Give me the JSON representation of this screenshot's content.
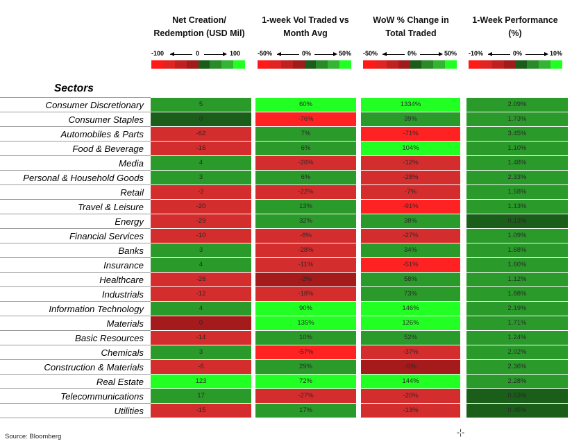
{
  "headers": [
    {
      "line1": "Net Creation/",
      "line2": "Redemption (USD Mil)"
    },
    {
      "line1": "1-week Vol Traded vs",
      "line2": "Month Avg"
    },
    {
      "line1": "WoW % Change in",
      "line2": "Total Traded"
    },
    {
      "line1": "1-Week Performance",
      "line2": "(%)"
    }
  ],
  "scales": [
    {
      "min": "-100",
      "mid": "0",
      "max": "100"
    },
    {
      "min": "-50%",
      "mid": "0%",
      "max": "50%"
    },
    {
      "min": "-50%",
      "mid": "0%",
      "max": "50%"
    },
    {
      "min": "-10%",
      "mid": "0%",
      "max": "10%"
    }
  ],
  "colors": {
    "bright_red": "#ff2222",
    "red": "#d42d2d",
    "dark_red": "#a51a1a",
    "dark_green": "#1a5e1a",
    "green": "#2a9a2a",
    "bright_green": "#22ff22",
    "scale_steps": [
      "#ff1a1a",
      "#e02424",
      "#c02020",
      "#a01c1c",
      "#1b5c1b",
      "#2a8a2a",
      "#33b433",
      "#22ff22"
    ]
  },
  "sectors_title": "Sectors",
  "source": "Source: Bloomberg",
  "cursor_glyph": "-¦-",
  "chart_data": {
    "type": "table",
    "columns": [
      "Net Creation/ Redemption (USD Mil)",
      "1-week Vol Traded vs Month Avg",
      "WoW % Change in Total Traded",
      "1-Week Performance (%)"
    ],
    "rows": [
      {
        "sector": "Consumer Discretionary",
        "net": 5,
        "vol": "60%",
        "wow": "1334%",
        "perf": "2.09%",
        "colors": [
          "green",
          "bright_green",
          "bright_green",
          "green"
        ]
      },
      {
        "sector": "Consumer Staples",
        "net": 0,
        "vol": "-76%",
        "wow": "39%",
        "perf": "1.73%",
        "colors": [
          "dark_green",
          "bright_red",
          "green",
          "green"
        ]
      },
      {
        "sector": "Automobiles & Parts",
        "net": -62,
        "vol": "7%",
        "wow": "-71%",
        "perf": "3.45%",
        "colors": [
          "red",
          "green",
          "bright_red",
          "green"
        ]
      },
      {
        "sector": "Food & Beverage",
        "net": -16,
        "vol": "6%",
        "wow": "104%",
        "perf": "1.10%",
        "colors": [
          "red",
          "green",
          "bright_green",
          "green"
        ]
      },
      {
        "sector": "Media",
        "net": 4,
        "vol": "-26%",
        "wow": "-12%",
        "perf": "1.48%",
        "colors": [
          "green",
          "red",
          "red",
          "green"
        ]
      },
      {
        "sector": "Personal & Household Goods",
        "net": 3,
        "vol": "6%",
        "wow": "-28%",
        "perf": "2.33%",
        "colors": [
          "green",
          "green",
          "red",
          "green"
        ]
      },
      {
        "sector": "Retail",
        "net": -2,
        "vol": "-22%",
        "wow": "-7%",
        "perf": "1.58%",
        "colors": [
          "red",
          "red",
          "red",
          "green"
        ]
      },
      {
        "sector": "Travel & Leisure",
        "net": -20,
        "vol": "13%",
        "wow": "-91%",
        "perf": "1.13%",
        "colors": [
          "red",
          "green",
          "bright_red",
          "green"
        ]
      },
      {
        "sector": "Energy",
        "net": -29,
        "vol": "32%",
        "wow": "38%",
        "perf": "0.13%",
        "colors": [
          "red",
          "green",
          "green",
          "dark_green"
        ]
      },
      {
        "sector": "Financial Services",
        "net": -10,
        "vol": "-8%",
        "wow": "-27%",
        "perf": "1.09%",
        "colors": [
          "red",
          "red",
          "red",
          "green"
        ]
      },
      {
        "sector": "Banks",
        "net": 3,
        "vol": "-28%",
        "wow": "34%",
        "perf": "1.68%",
        "colors": [
          "green",
          "red",
          "green",
          "green"
        ]
      },
      {
        "sector": "Insurance",
        "net": 4,
        "vol": "-11%",
        "wow": "-51%",
        "perf": "1.60%",
        "colors": [
          "green",
          "red",
          "bright_red",
          "green"
        ]
      },
      {
        "sector": "Healthcare",
        "net": -26,
        "vol": "-2%",
        "wow": "58%",
        "perf": "1.12%",
        "colors": [
          "red",
          "dark_red",
          "green",
          "green"
        ]
      },
      {
        "sector": "Industrials",
        "net": -12,
        "vol": "-18%",
        "wow": "73%",
        "perf": "1.88%",
        "colors": [
          "red",
          "red",
          "green",
          "green"
        ]
      },
      {
        "sector": "Information Technology",
        "net": 4,
        "vol": "90%",
        "wow": "146%",
        "perf": "2.19%",
        "colors": [
          "green",
          "bright_green",
          "bright_green",
          "green"
        ]
      },
      {
        "sector": "Materials",
        "net": 0,
        "vol": "135%",
        "wow": "126%",
        "perf": "1.71%",
        "colors": [
          "dark_red",
          "bright_green",
          "bright_green",
          "green"
        ]
      },
      {
        "sector": "Basic Resources",
        "net": -14,
        "vol": "10%",
        "wow": "52%",
        "perf": "1.24%",
        "colors": [
          "red",
          "green",
          "green",
          "green"
        ]
      },
      {
        "sector": "Chemicals",
        "net": 3,
        "vol": "-57%",
        "wow": "-37%",
        "perf": "2.02%",
        "colors": [
          "green",
          "bright_red",
          "red",
          "green"
        ]
      },
      {
        "sector": "Construction & Materials",
        "net": -6,
        "vol": "29%",
        "wow": "-5%",
        "perf": "2.36%",
        "colors": [
          "red",
          "green",
          "dark_red",
          "green"
        ]
      },
      {
        "sector": "Real Estate",
        "net": 123,
        "vol": "72%",
        "wow": "144%",
        "perf": "2.28%",
        "colors": [
          "bright_green",
          "bright_green",
          "bright_green",
          "green"
        ]
      },
      {
        "sector": "Telecommunications",
        "net": 17,
        "vol": "-27%",
        "wow": "-20%",
        "perf": "0.53%",
        "colors": [
          "green",
          "red",
          "red",
          "dark_green"
        ]
      },
      {
        "sector": "Utilities",
        "net": -15,
        "vol": "17%",
        "wow": "-13%",
        "perf": "0.45%",
        "colors": [
          "red",
          "green",
          "red",
          "dark_green"
        ]
      }
    ]
  }
}
